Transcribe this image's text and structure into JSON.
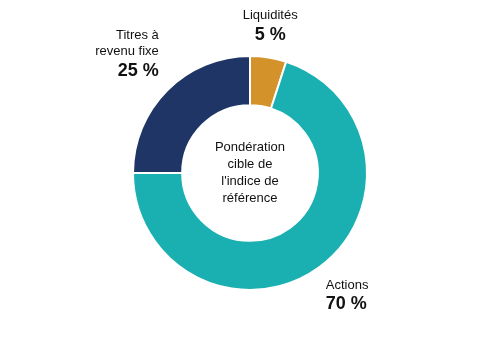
{
  "chart_data": {
    "type": "doughnut",
    "categories": [
      "Liquidités",
      "Actions",
      "Titres à\nrevenu fixe"
    ],
    "values": [
      5,
      70,
      25
    ],
    "value_labels": [
      "5 %",
      "70 %",
      "25 %"
    ],
    "colors": [
      "#D4922A",
      "#1AAFB0",
      "#1E3566"
    ],
    "annotations": [
      "Pondération\ncible de\nl'indice de\nréférence"
    ],
    "data_labels": true,
    "legend": false
  }
}
